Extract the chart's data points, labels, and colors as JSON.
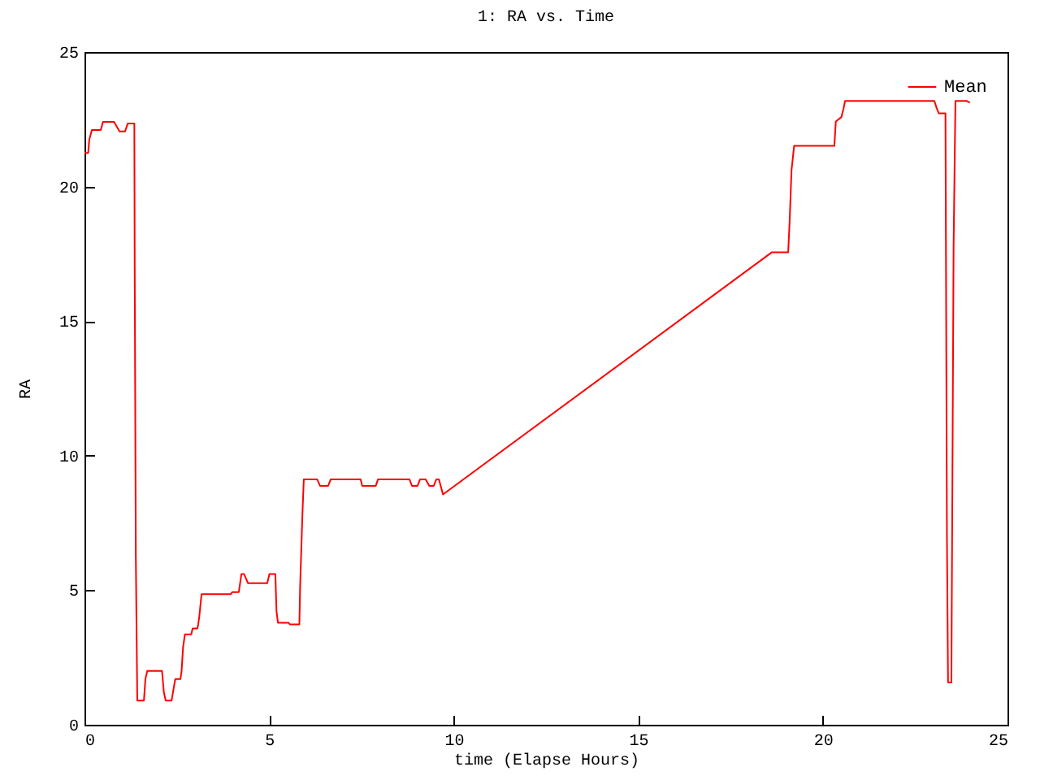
{
  "chart_data": {
    "type": "line",
    "title": "1: RA vs. Time",
    "xlabel": "time (Elapse Hours)",
    "ylabel": "RA",
    "x": [
      0,
      0.1,
      0.13,
      0.2,
      0.44,
      0.5,
      0.8,
      0.95,
      1.1,
      1.17,
      1.35,
      1.36,
      1.39,
      1.43,
      1.61,
      1.65,
      1.7,
      2.1,
      2.15,
      2.2,
      2.36,
      2.42,
      2.46,
      2.6,
      2.63,
      2.67,
      2.72,
      2.89,
      2.93,
      3.06,
      3.08,
      3.11,
      3.17,
      3.96,
      4.0,
      4.18,
      4.25,
      4.32,
      4.43,
      4.95,
      5.01,
      5.17,
      5.2,
      5.24,
      5.53,
      5.56,
      5.82,
      5.84,
      5.9,
      5.94,
      6.3,
      6.38,
      6.6,
      6.67,
      7.48,
      7.52,
      7.89,
      7.95,
      8.8,
      8.87,
      9.02,
      9.09,
      9.24,
      9.34,
      9.46,
      9.53,
      9.6,
      9.71,
      18.62,
      19.06,
      19.1,
      19.15,
      19.22,
      20.31,
      20.35,
      20.5,
      20.56,
      20.6,
      23.02,
      23.08,
      23.14,
      23.32,
      23.36,
      23.39,
      23.48,
      23.5,
      23.54,
      23.59,
      23.9,
      23.98
    ],
    "series": [
      {
        "name": "Mean",
        "color": "#ff0000",
        "values": [
          21.25,
          21.25,
          21.75,
          22.1,
          22.1,
          22.4,
          22.4,
          22.05,
          22.05,
          22.34,
          22.34,
          17.0,
          6.24,
          0.9,
          0.9,
          1.7,
          2.0,
          2.0,
          1.2,
          0.9,
          0.9,
          1.4,
          1.7,
          1.7,
          2.0,
          2.88,
          3.36,
          3.36,
          3.58,
          3.58,
          3.73,
          4.03,
          4.85,
          4.85,
          4.93,
          4.93,
          5.6,
          5.6,
          5.26,
          5.26,
          5.6,
          5.6,
          4.23,
          3.79,
          3.79,
          3.73,
          3.73,
          5.1,
          7.72,
          9.12,
          9.12,
          8.88,
          8.88,
          9.12,
          9.12,
          8.88,
          8.88,
          9.12,
          9.12,
          8.88,
          8.88,
          9.12,
          9.12,
          8.88,
          8.88,
          9.12,
          9.12,
          8.56,
          17.56,
          17.56,
          18.73,
          20.6,
          21.51,
          21.51,
          22.42,
          22.58,
          22.9,
          23.18,
          23.18,
          22.92,
          22.72,
          22.72,
          6.9,
          1.57,
          1.57,
          6.95,
          17.78,
          23.18,
          23.18,
          23.12
        ]
      }
    ],
    "xlim": [
      0,
      25
    ],
    "ylim": [
      0,
      25
    ],
    "xticks": [
      0,
      5,
      10,
      15,
      20,
      25
    ],
    "yticks": [
      0,
      5,
      10,
      15,
      20,
      25
    ],
    "legend": "top right"
  }
}
